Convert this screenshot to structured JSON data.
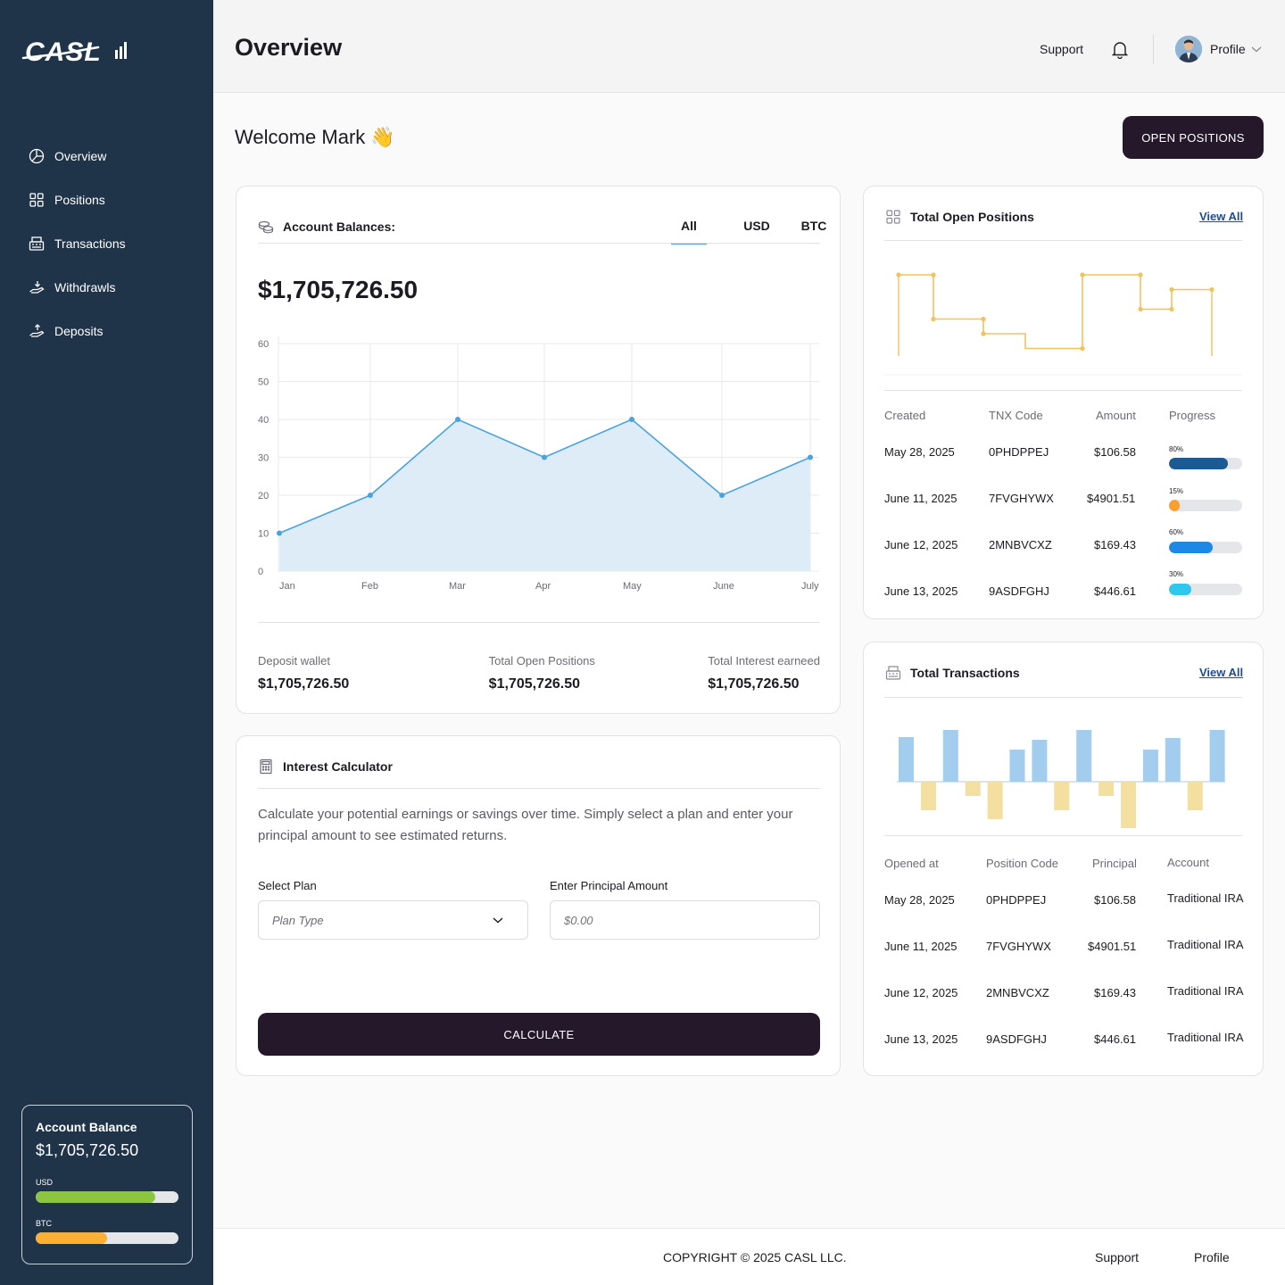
{
  "brand": {
    "logo_text": "CASL"
  },
  "sidebar": {
    "items": [
      {
        "label": "Overview",
        "icon": "pie-chart-icon"
      },
      {
        "label": "Positions",
        "icon": "grid-icon"
      },
      {
        "label": "Transactions",
        "icon": "cash-register-icon"
      },
      {
        "label": "Withdrawls",
        "icon": "hand-withdraw-icon"
      },
      {
        "label": "Deposits",
        "icon": "hand-deposit-icon"
      }
    ],
    "balance_card": {
      "title": "Account Balance",
      "amount": "$1,705,726.50",
      "bars": [
        {
          "label": "USD",
          "fill": 0.84,
          "color": "#8cc63f"
        },
        {
          "label": "BTC",
          "fill": 0.5,
          "color": "#fbb034"
        }
      ]
    }
  },
  "header": {
    "title": "Overview",
    "support": "Support",
    "profile": "Profile"
  },
  "welcome": {
    "text": "Welcome Mark 👋"
  },
  "open_positions_button": "OPEN POSITIONS",
  "account_balances": {
    "title": "Account Balances:",
    "tabs": [
      "All",
      "USD",
      "BTC"
    ],
    "active_tab": "All",
    "amount": "$1,705,726.50",
    "stats": [
      {
        "label": "Deposit wallet",
        "value": "$1,705,726.50"
      },
      {
        "label": "Total Open Positions",
        "value": "$1,705,726.50"
      },
      {
        "label": "Total Interest earneed",
        "value": "$1,705,726.50"
      }
    ]
  },
  "chart_data": {
    "type": "area",
    "categories": [
      "Jan",
      "Feb",
      "Mar",
      "Apr",
      "May",
      "June",
      "July"
    ],
    "values": [
      10,
      20,
      40,
      30,
      40,
      20,
      30
    ],
    "yticks": [
      0,
      10,
      20,
      30,
      40,
      50,
      60
    ],
    "ylim": [
      0,
      60
    ],
    "grid": true,
    "color": "#4aa3df",
    "fill": "#dcebf8"
  },
  "interest_calculator": {
    "title": "Interest Calculator",
    "description": "Calculate your potential earnings or savings over time. Simply select a plan and enter your principal amount to see estimated returns.",
    "select_label": "Select Plan",
    "select_value": "Plan Type",
    "amount_label": "Enter Principal Amount",
    "amount_placeholder": "$0.00",
    "button": "CALCULATE"
  },
  "total_open_positions": {
    "title": "Total Open Positions",
    "view_all": "View All",
    "columns": [
      "Created",
      "TNX Code",
      "Amount",
      "Progress"
    ],
    "rows": [
      {
        "created": "May 28, 2025",
        "code": "0PHDPPEJ",
        "amount": "$106.58",
        "progress": "80%",
        "fill": 0.8,
        "color": "#1c5a93"
      },
      {
        "created": "June 11, 2025",
        "code": "7FVGHYWX",
        "amount": "$4901.51",
        "progress": "15%",
        "fill": 0.15,
        "color": "#f89f2d"
      },
      {
        "created": "June 12, 2025",
        "code": "2MNBVCXZ",
        "amount": "$169.43",
        "progress": "60%",
        "fill": 0.6,
        "color": "#1e88e5"
      },
      {
        "created": "June 13, 2025",
        "code": "9ASDFGHJ",
        "amount": "$446.61",
        "progress": "30%",
        "fill": 0.3,
        "color": "#2ec7ee"
      }
    ],
    "step_chart": {
      "color": "#f2c25b",
      "values": [
        0.9,
        0.9,
        0.45,
        0.45,
        0.3,
        0.3,
        0.15,
        0.15,
        0.9,
        0.9,
        0.55,
        0.55,
        0.75,
        0.75
      ]
    }
  },
  "total_transactions": {
    "title": "Total Transactions",
    "view_all": "View All",
    "columns": [
      "Opened at",
      "Position Code",
      "Principal",
      "Account"
    ],
    "rows": [
      {
        "opened": "May 28, 2025",
        "code": "0PHDPPEJ",
        "principal": "$106.58",
        "account": "Traditional IRA"
      },
      {
        "opened": "June 11, 2025",
        "code": "7FVGHYWX",
        "principal": "$4901.51",
        "account": "Traditional IRA"
      },
      {
        "opened": "June 12, 2025",
        "code": "2MNBVCXZ",
        "principal": "$169.43",
        "account": "Traditional IRA"
      },
      {
        "opened": "June 13, 2025",
        "code": "9ASDFGHJ",
        "principal": "$446.61",
        "account": "Traditional IRA"
      }
    ],
    "bar_chart": {
      "positive_color": "#a3cdee",
      "negative_color": "#f3df9f",
      "values": [
        50,
        -32,
        58,
        -16,
        -42,
        36,
        47,
        -32,
        58,
        -16,
        -52,
        36,
        49,
        -32,
        58
      ]
    }
  },
  "footer": {
    "copyright": "COPYRIGHT © 2025 CASL LLC.",
    "support": "Support",
    "profile": "Profile"
  }
}
